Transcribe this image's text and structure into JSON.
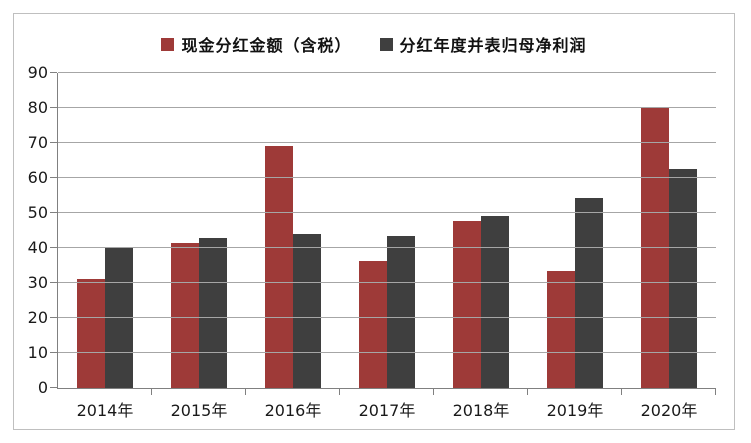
{
  "chart_data": {
    "type": "bar",
    "title": "",
    "xlabel": "",
    "ylabel": "",
    "categories": [
      "2014年",
      "2015年",
      "2016年",
      "2017年",
      "2018年",
      "2019年",
      "2020年"
    ],
    "series": [
      {
        "name": "现金分红金额（含税）",
        "color": "#9E3A38",
        "values": [
          31.2,
          41.3,
          69.2,
          36.4,
          47.7,
          33.4,
          80.0
        ]
      },
      {
        "name": "分红年度并表归母净利润",
        "color": "#3F3F3F",
        "values": [
          40.4,
          42.8,
          44.1,
          43.3,
          49.2,
          54.2,
          62.6
        ]
      }
    ],
    "ylim": [
      0,
      90
    ],
    "yticks": [
      0,
      10,
      20,
      30,
      40,
      50,
      60,
      70,
      80,
      90
    ],
    "grid": true,
    "legend_position": "top"
  }
}
